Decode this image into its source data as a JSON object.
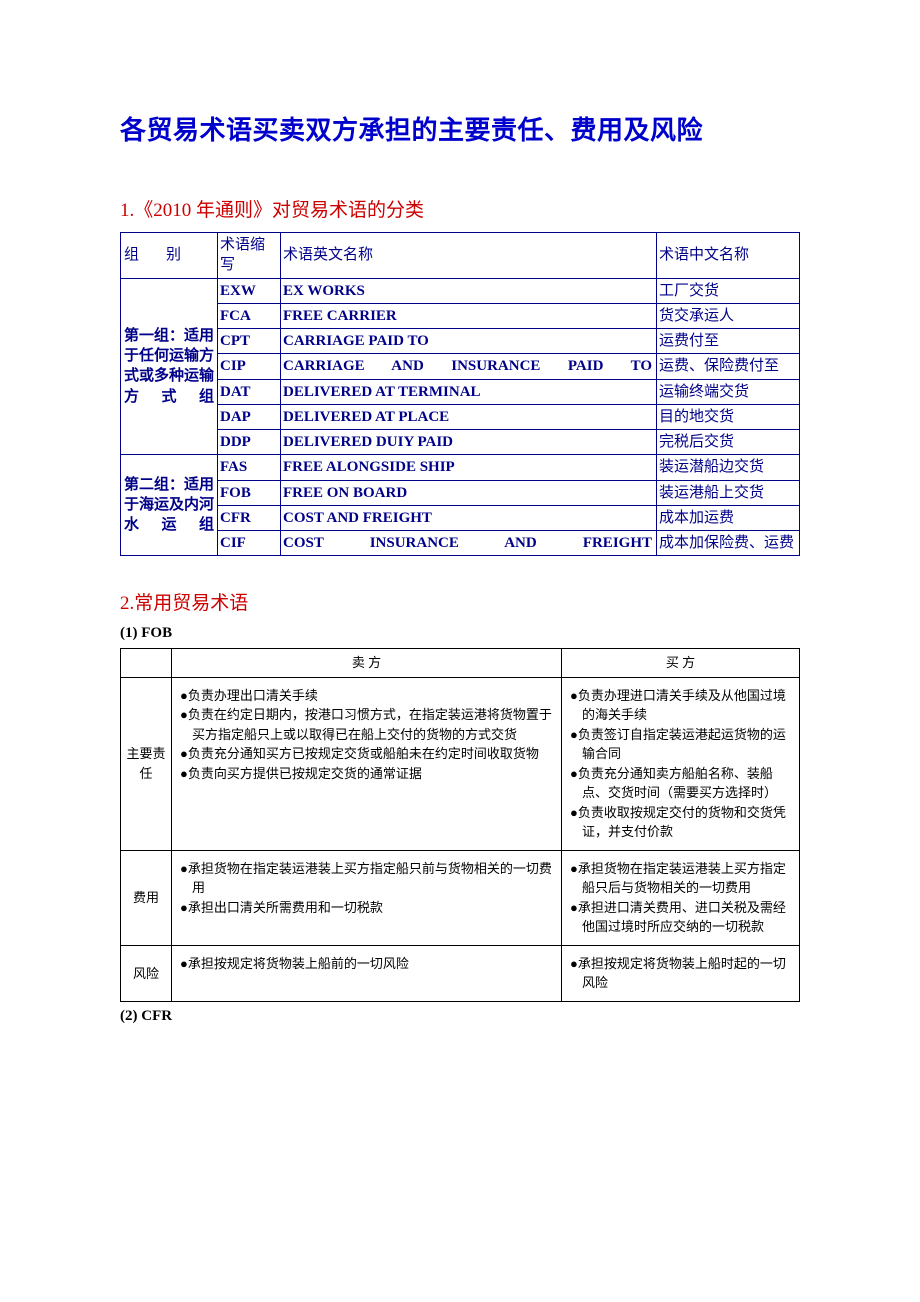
{
  "title": "各贸易术语买卖双方承担的主要责任、费用及风险",
  "section1": {
    "title": "1.《2010 年通则》对贸易术语的分类",
    "headers": {
      "c0": "组　别",
      "c1": "术语缩写",
      "c2": "术语英文名称",
      "c3": "术语中文名称"
    },
    "group1": {
      "label": "第一组：适用于任何运输方式或多种运输方式组",
      "rows": [
        {
          "abbr": "EXW",
          "en": "EX WORKS",
          "cn": "工厂交货"
        },
        {
          "abbr": "FCA",
          "en": "FREE CARRIER",
          "cn": "货交承运人"
        },
        {
          "abbr": "CPT",
          "en": "CARRIAGE PAID TO",
          "cn": "运费付至"
        },
        {
          "abbr": "CIP",
          "en": "CARRIAGE AND INSURANCE PAID TO",
          "cn": "运费、保险费付至"
        },
        {
          "abbr": "DAT",
          "en": "DELIVERED AT TERMINAL",
          "cn": "运输终端交货"
        },
        {
          "abbr": "DAP",
          "en": "DELIVERED AT PLACE",
          "cn": "目的地交货"
        },
        {
          "abbr": "DDP",
          "en": "DELIVERED DUIY PAID",
          "cn": "完税后交货"
        }
      ]
    },
    "group2": {
      "label": "第二组：适用于海运及内河水运组",
      "rows": [
        {
          "abbr": "FAS",
          "en": "FREE ALONGSIDE SHIP",
          "cn": "装运潜船边交货"
        },
        {
          "abbr": "FOB",
          "en": "FREE ON BOARD",
          "cn": "装运港船上交货"
        },
        {
          "abbr": "CFR",
          "en": "COST AND FREIGHT",
          "cn": "成本加运费"
        },
        {
          "abbr": "CIF",
          "en": "COST INSURANCE AND FREIGHT",
          "cn": "成本加保险费、运费"
        }
      ]
    }
  },
  "section2": {
    "title": "2.常用贸易术语",
    "fob": {
      "label": "(1) FOB",
      "headers": {
        "blank": "",
        "seller": "卖 方",
        "buyer": "买 方"
      },
      "rows": [
        {
          "label": "主要责任",
          "seller": [
            "●负责办理出口清关手续",
            "●负责在约定日期内，按港口习惯方式，在指定装运港将货物置于买方指定船只上或以取得已在船上交付的货物的方式交货",
            "●负责充分通知买方已按规定交货或船舶未在约定时间收取货物",
            "●负责向买方提供已按规定交货的通常证据"
          ],
          "buyer": [
            "●负责办理进口清关手续及从他国过境的海关手续",
            "●负责签订自指定装运港起运货物的运输合同",
            "●负责充分通知卖方船舶名称、装船点、交货时间（需要买方选择时）",
            "●负责收取按规定交付的货物和交货凭证，并支付价款"
          ]
        },
        {
          "label": "费用",
          "seller": [
            "●承担货物在指定装运港装上买方指定船只前与货物相关的一切费用",
            "●承担出口清关所需费用和一切税款"
          ],
          "buyer": [
            "●承担货物在指定装运港装上买方指定船只后与货物相关的一切费用",
            "●承担进口清关费用、进口关税及需经他国过境时所应交纳的一切税款"
          ]
        },
        {
          "label": "风险",
          "seller": [
            "●承担按规定将货物装上船前的一切风险"
          ],
          "buyer": [
            "●承担按规定将货物装上船时起的一切风险"
          ]
        }
      ]
    },
    "cfr_label": "(2) CFR"
  }
}
